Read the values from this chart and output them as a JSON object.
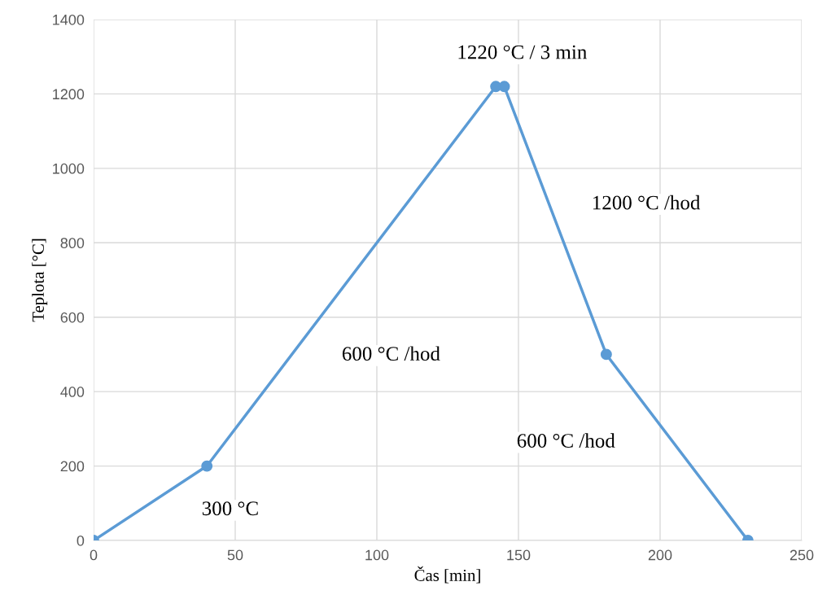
{
  "chart_data": {
    "type": "line",
    "xlabel": "Čas [min]",
    "ylabel": "Teplota [°C]",
    "x": [
      0,
      40,
      142,
      145,
      181,
      231
    ],
    "values": [
      0,
      200,
      1220,
      1220,
      500,
      0
    ],
    "color": "#5b9bd5",
    "marker": "circle",
    "line_style": "solid",
    "xlim": [
      0,
      250
    ],
    "xticks": [
      0,
      50,
      100,
      150,
      200,
      250
    ],
    "ylim": [
      0,
      1400
    ],
    "yticks": [
      0,
      200,
      400,
      600,
      800,
      1000,
      1200,
      1400
    ],
    "grid": true,
    "legend": false,
    "annotations": [
      "1220 °C / 3 min",
      "1200 °C /hod",
      "600 °C /hod",
      "600 °C /hod",
      "300 °C"
    ]
  }
}
